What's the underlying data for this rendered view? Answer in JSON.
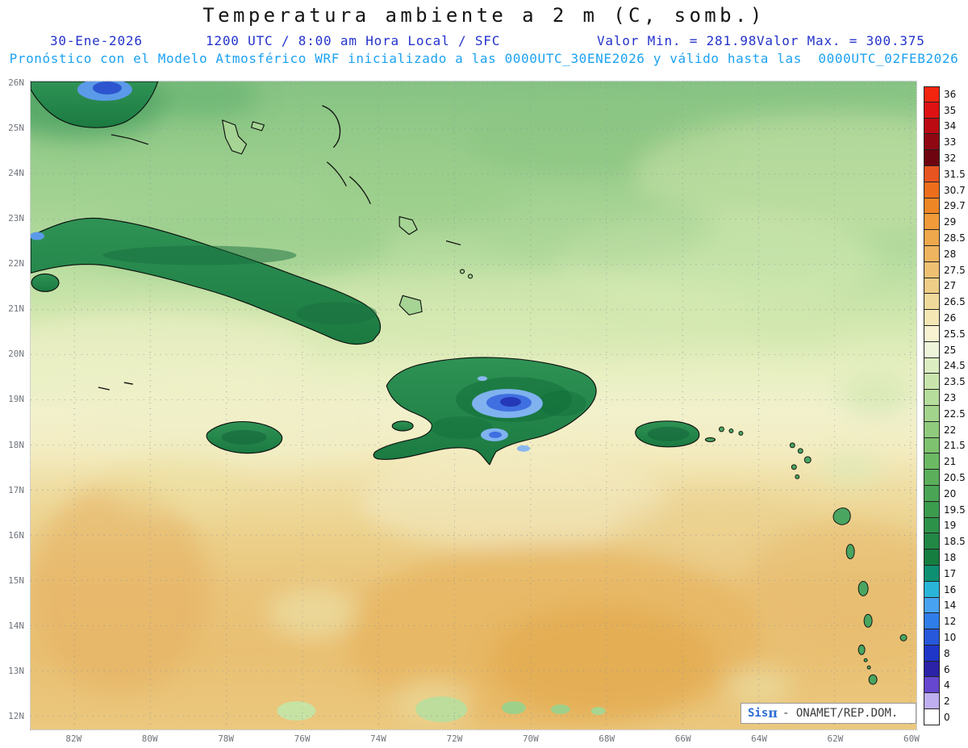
{
  "chart_data": {
    "type": "heatmap",
    "title": "Temperatura ambiente a 2 m (C, somb.)",
    "subtitle_date": "30-Ene-2026",
    "subtitle_time": "1200 UTC / 8:00 am Hora Local / SFC",
    "value_min_label": "Valor Min. = 281.98",
    "value_max_label": "Valor Max. = 300.375",
    "value_min": 281.98,
    "value_max": 300.375,
    "model_line": "Pronóstico con el Modelo Atmosférico WRF inicializado a las 0000UTC_30ENE2026 y válido hasta las  0000UTC_02FEB2026",
    "x_axis": {
      "ticks": [
        "82W",
        "80W",
        "78W",
        "76W",
        "74W",
        "72W",
        "70W",
        "68W",
        "66W",
        "64W",
        "62W",
        "60W"
      ]
    },
    "y_axis": {
      "ticks": [
        "26N",
        "25N",
        "24N",
        "23N",
        "22N",
        "21N",
        "20N",
        "19N",
        "18N",
        "17N",
        "16N",
        "15N",
        "14N",
        "13N",
        "12N"
      ]
    },
    "colorbar": [
      {
        "label": "36",
        "color": "#f3250f"
      },
      {
        "label": "35",
        "color": "#de1212"
      },
      {
        "label": "34",
        "color": "#bb0a12"
      },
      {
        "label": "33",
        "color": "#8f0712"
      },
      {
        "label": "32",
        "color": "#6e0410"
      },
      {
        "label": "31.5",
        "color": "#e8541f"
      },
      {
        "label": "30.7",
        "color": "#ec6e1c"
      },
      {
        "label": "29.7",
        "color": "#ef8626"
      },
      {
        "label": "29",
        "color": "#f09a39"
      },
      {
        "label": "28.5",
        "color": "#f0a84c"
      },
      {
        "label": "28",
        "color": "#efb45f"
      },
      {
        "label": "27.5",
        "color": "#eec072"
      },
      {
        "label": "27",
        "color": "#eecd86"
      },
      {
        "label": "26.5",
        "color": "#f0da9b"
      },
      {
        "label": "26",
        "color": "#f4e7b4"
      },
      {
        "label": "25.5",
        "color": "#f8f2d2"
      },
      {
        "label": "25",
        "color": "#eef4da"
      },
      {
        "label": "24.5",
        "color": "#dcedc2"
      },
      {
        "label": "23.5",
        "color": "#c9e5ad"
      },
      {
        "label": "23",
        "color": "#b6dd9c"
      },
      {
        "label": "22.5",
        "color": "#a3d48c"
      },
      {
        "label": "22",
        "color": "#90cb7d"
      },
      {
        "label": "21.5",
        "color": "#7ec26f"
      },
      {
        "label": "21",
        "color": "#6cb963"
      },
      {
        "label": "20.5",
        "color": "#5baf5b"
      },
      {
        "label": "20",
        "color": "#4aa654"
      },
      {
        "label": "19.5",
        "color": "#3b9c4e"
      },
      {
        "label": "19",
        "color": "#2d9249"
      },
      {
        "label": "18.5",
        "color": "#218845"
      },
      {
        "label": "18",
        "color": "#167d40"
      },
      {
        "label": "17",
        "color": "#0c9071"
      },
      {
        "label": "16",
        "color": "#2ab5d8"
      },
      {
        "label": "14",
        "color": "#47a3f2"
      },
      {
        "label": "12",
        "color": "#2f7de9"
      },
      {
        "label": "10",
        "color": "#2757da"
      },
      {
        "label": "8",
        "color": "#1f36c8"
      },
      {
        "label": "6",
        "color": "#2b22a8"
      },
      {
        "label": "4",
        "color": "#6647cf"
      },
      {
        "label": "2",
        "color": "#bfaff0"
      },
      {
        "label": "0",
        "color": "#ffffff"
      }
    ],
    "field_notes": "Shaded 2 m temperature: greens 23-26 over the Atlantic north of 22N, pale yellows 25.5-27 between 19N and 21N, oranges 27.5-29 over the southern Caribbean; island interiors (Cuba, Jamaica, Hispaniola, Puerto Rico) 18-22 dark green with blue cold cores 10-16 over the Hispaniola highlands and south Florida."
  },
  "attribution": {
    "brand": "Sis",
    "pi": "π",
    "text": "- ONAMET/REP.DOM."
  }
}
